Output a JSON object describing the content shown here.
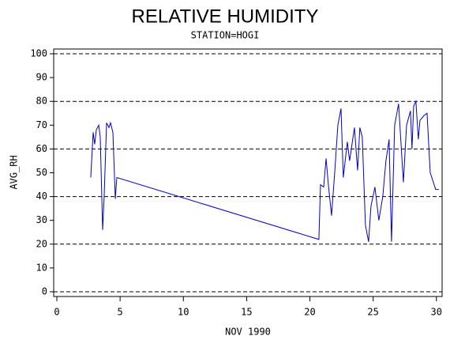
{
  "chart_data": {
    "type": "line",
    "title": "RELATIVE HUMIDITY",
    "subtitle": "STATION=HOGI",
    "x_label": "NOV 1990",
    "y_label": "AVG_RH",
    "xlim": [
      -0.25,
      30.45
    ],
    "ylim": [
      -2,
      102
    ],
    "xticks": [
      0,
      5,
      10,
      15,
      20,
      25,
      30
    ],
    "yticks": [
      0,
      10,
      20,
      30,
      40,
      50,
      60,
      70,
      80,
      90,
      100
    ],
    "ygrid": [
      0,
      20,
      40,
      60,
      80,
      100
    ],
    "series": [
      {
        "color": "#0000cc",
        "x": [
          2.68,
          2.87,
          2.99,
          3.12,
          3.31,
          3.43,
          3.62,
          3.74,
          3.93,
          4.12,
          4.24,
          4.43,
          4.62,
          4.74,
          20.71,
          20.84,
          21.09,
          21.28,
          21.46,
          21.71,
          21.96,
          22.21,
          22.46,
          22.64,
          22.96,
          23.14,
          23.33,
          23.52,
          23.77,
          23.95,
          24.14,
          24.39,
          24.64,
          24.83,
          25.14,
          25.45,
          25.76,
          26.01,
          26.26,
          26.45,
          26.7,
          27.01,
          27.39,
          27.64,
          27.95,
          28.07,
          28.2,
          28.38,
          28.57,
          28.7,
          29.01,
          29.26,
          29.51,
          29.7,
          29.94,
          30.19
        ],
        "values": [
          48,
          67,
          62,
          68,
          70,
          65,
          26,
          40,
          71,
          69,
          71,
          67,
          39,
          48,
          22,
          45,
          44,
          56,
          45,
          32,
          50,
          70,
          77,
          48,
          63,
          55,
          62,
          69,
          51,
          69,
          65,
          28,
          21,
          36,
          44,
          30,
          40,
          55,
          64,
          21,
          70,
          79,
          46,
          70,
          76,
          60,
          78,
          80,
          64,
          72,
          74,
          75,
          50,
          47,
          43,
          43
        ]
      }
    ]
  }
}
